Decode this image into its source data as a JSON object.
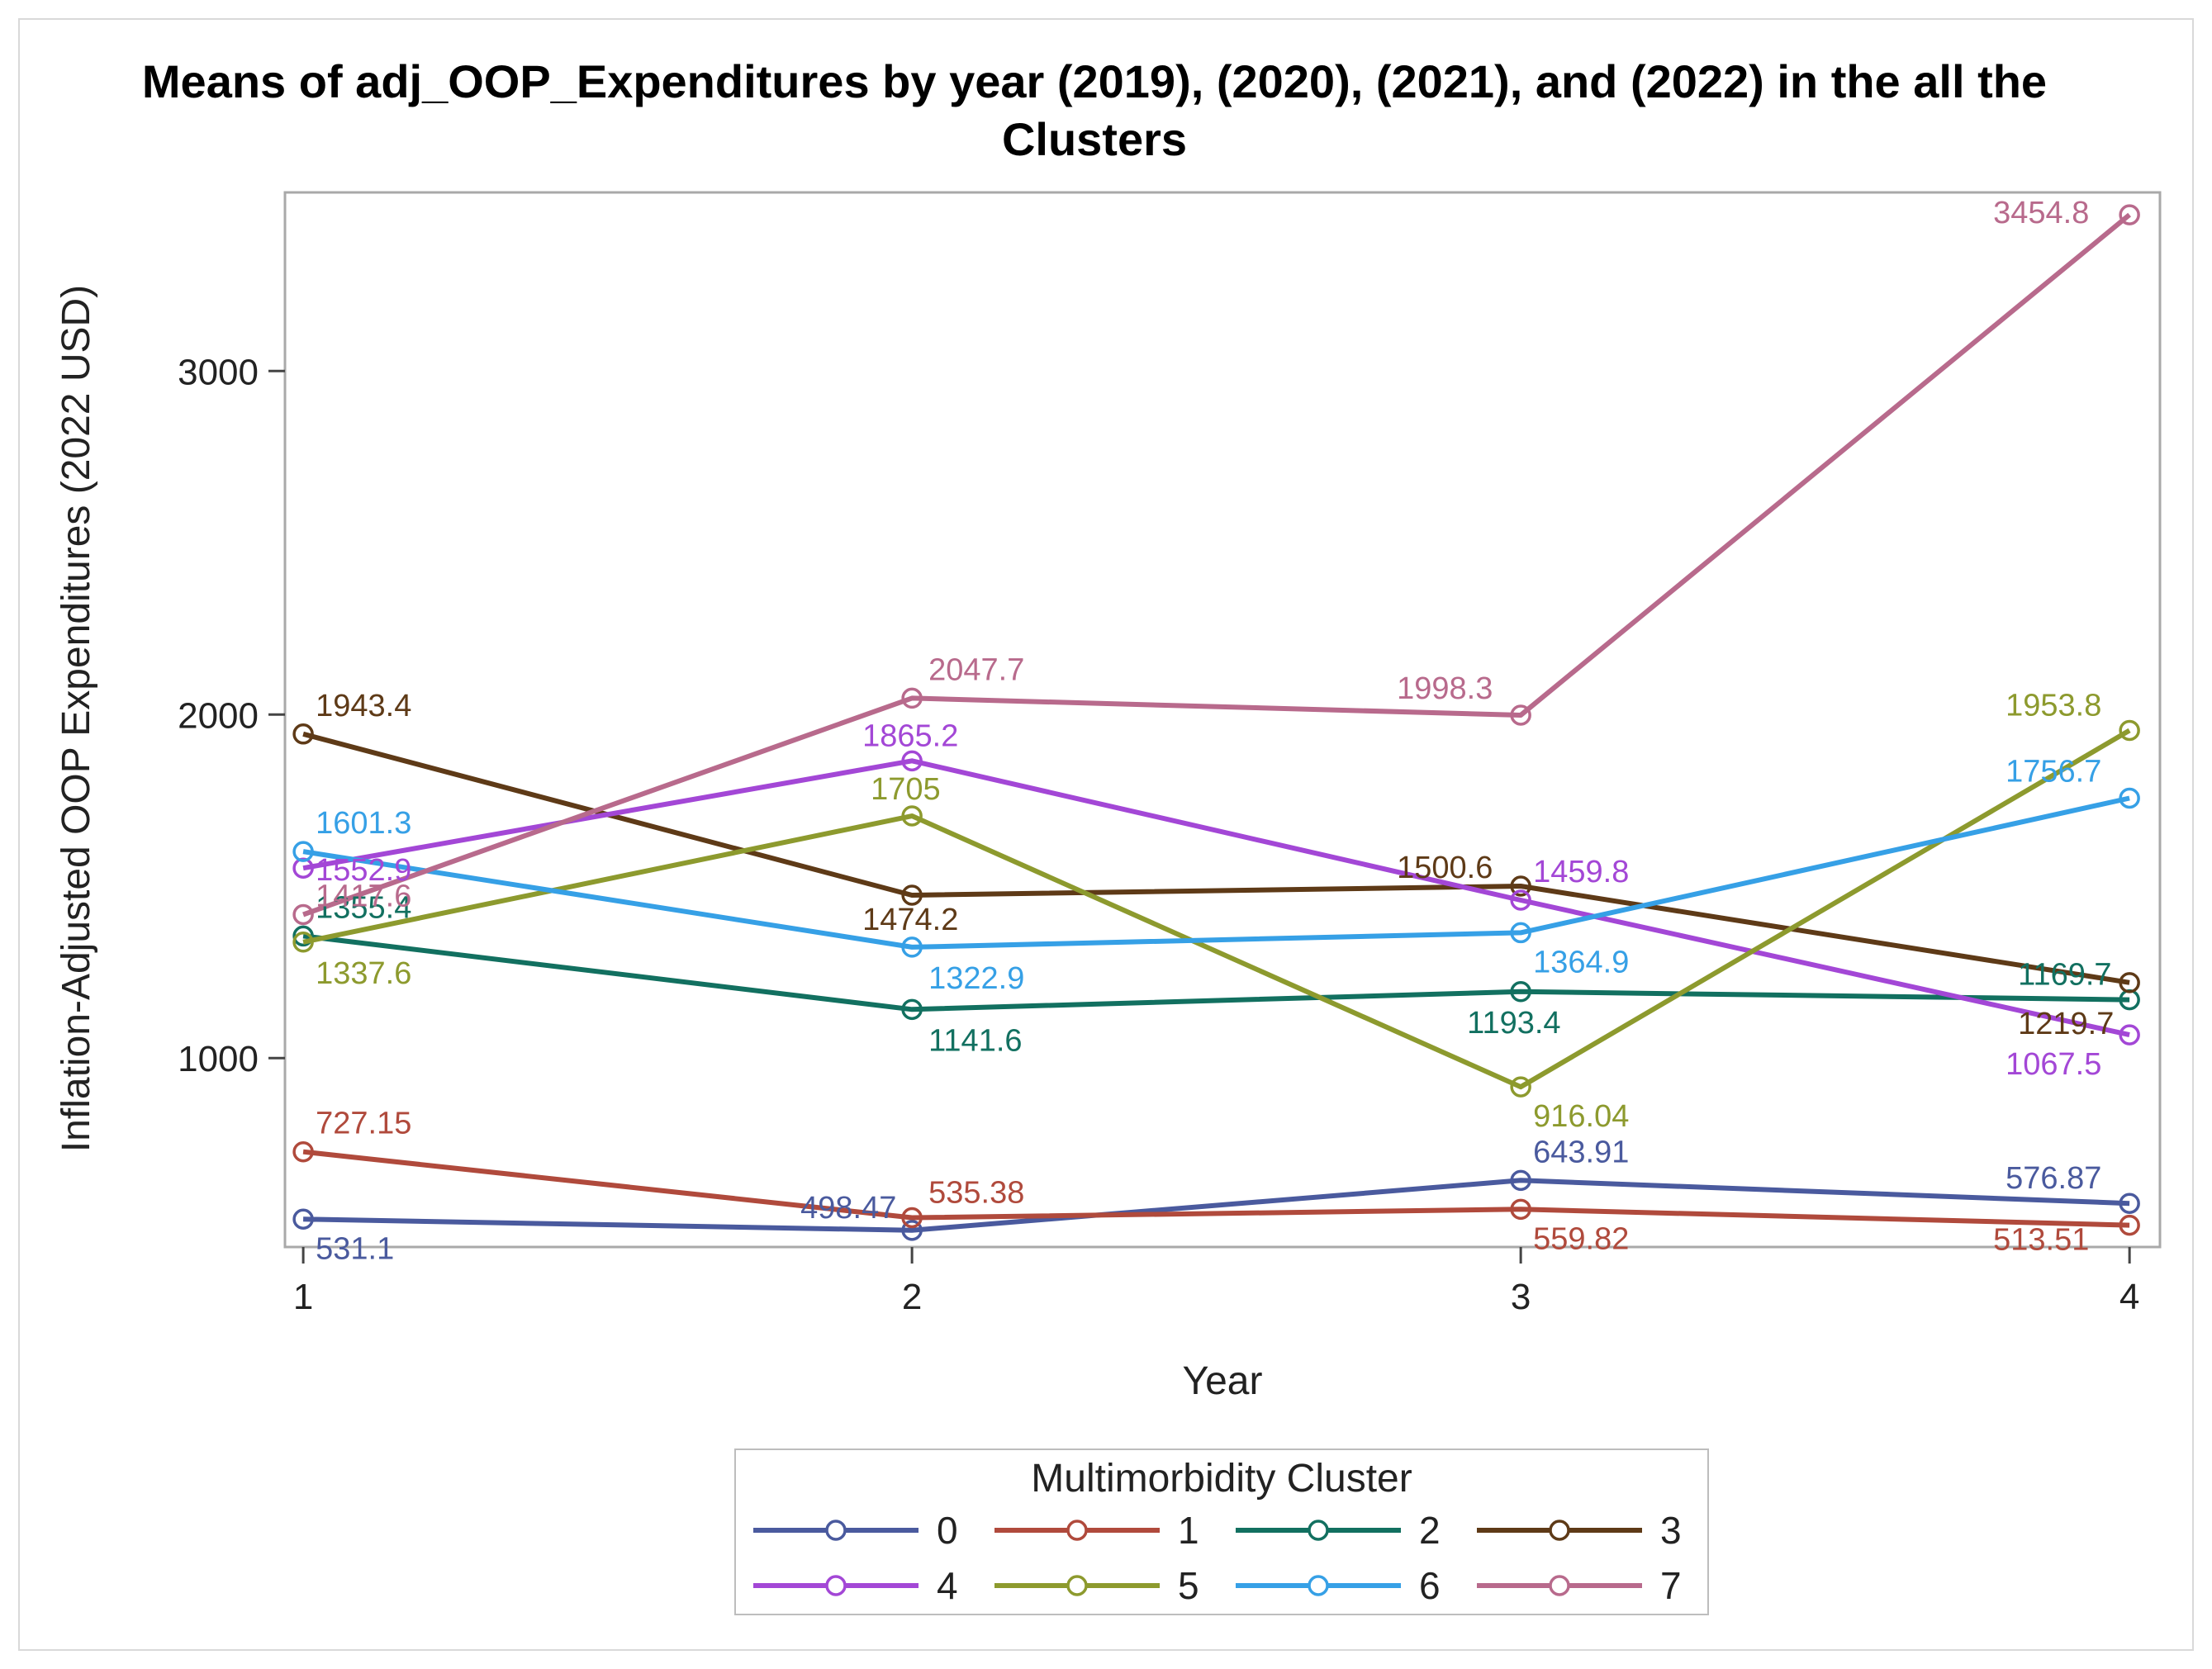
{
  "chart_data": {
    "type": "line",
    "title_lines": [
      "Means of adj_OOP_Expenditures by year  (2019), (2020), (2021), and (2022) in the all the",
      "Clusters"
    ],
    "xlabel": "Year",
    "ylabel": "Inflation-Adjusted OOP Expenditures (2022 USD)",
    "x": [
      1,
      2,
      3,
      4
    ],
    "x_tick_labels": [
      "1",
      "2",
      "3",
      "4"
    ],
    "y_ticks": [
      1000,
      2000,
      3000
    ],
    "y_tick_labels": [
      "1000",
      "2000",
      "3000"
    ],
    "xlim": [
      0.97,
      4.05
    ],
    "ylim": [
      450,
      3520
    ],
    "grid": false,
    "legend": {
      "title": "Multimorbidity Cluster",
      "placement": "bottom"
    },
    "series": [
      {
        "name": "0",
        "color": "#4a5a9e",
        "values": [
          531.1,
          498.47,
          643.91,
          576.87
        ],
        "labels": [
          "531.1",
          "498.47",
          "643.91",
          "576.87"
        ]
      },
      {
        "name": "1",
        "color": "#b04a3c",
        "values": [
          727.15,
          535.38,
          559.82,
          513.51
        ],
        "labels": [
          "727.15",
          "535.38",
          "559.82",
          "513.51"
        ]
      },
      {
        "name": "2",
        "color": "#127060",
        "values": [
          1355.4,
          1141.6,
          1193.4,
          1169.7
        ],
        "labels": [
          "1355.4",
          "1141.6",
          "1193.4",
          "1169.7"
        ]
      },
      {
        "name": "3",
        "color": "#5e3a17",
        "values": [
          1943.4,
          1474.2,
          1500.6,
          1219.7
        ],
        "labels": [
          "1943.4",
          "1474.2",
          "1500.6",
          "1219.7"
        ]
      },
      {
        "name": "4",
        "color": "#a347d6",
        "values": [
          1552.9,
          1865.2,
          1459.8,
          1067.5
        ],
        "labels": [
          "1552.9",
          "1865.2",
          "1459.8",
          "1067.5"
        ]
      },
      {
        "name": "5",
        "color": "#8d9a2e",
        "values": [
          1337.6,
          1705,
          916.04,
          1953.8
        ],
        "labels": [
          "1337.6",
          "1705",
          "916.04",
          "1953.8"
        ]
      },
      {
        "name": "6",
        "color": "#36a0e6",
        "values": [
          1601.3,
          1322.9,
          1364.9,
          1756.7
        ],
        "labels": [
          "1601.3",
          "1322.9",
          "1364.9",
          "1756.7"
        ]
      },
      {
        "name": "7",
        "color": "#b86a8c",
        "values": [
          1417.6,
          2047.7,
          1998.3,
          3454.8
        ],
        "labels": [
          "1417.6",
          "2047.7",
          "1998.3",
          "3454.8"
        ]
      }
    ]
  }
}
